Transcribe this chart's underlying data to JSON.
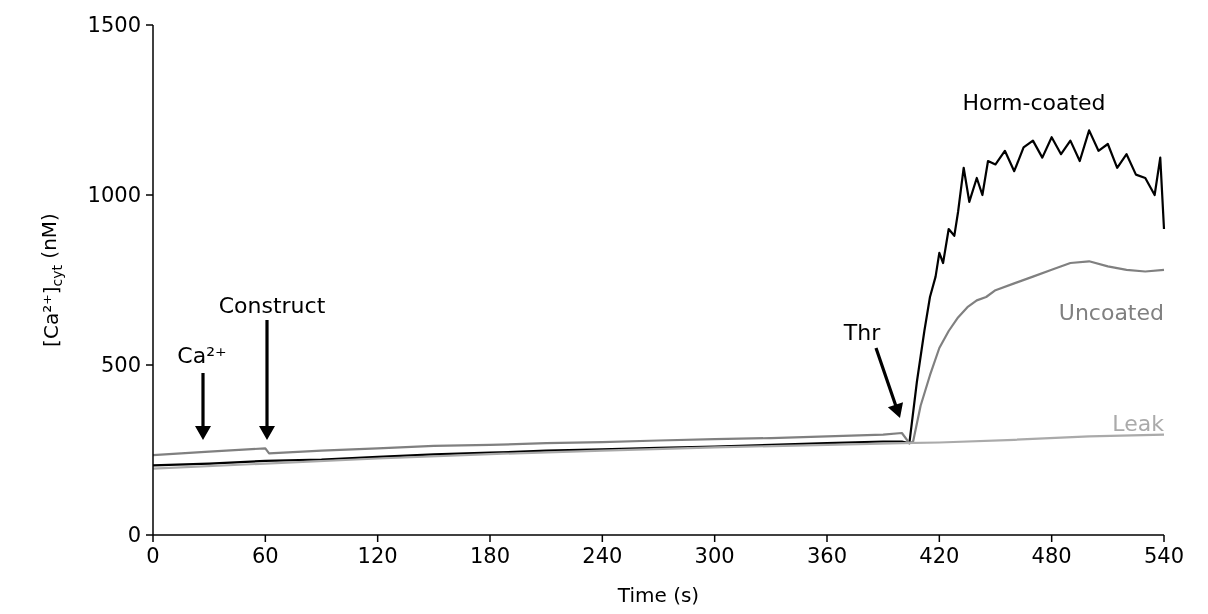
{
  "chart_data": {
    "type": "line",
    "xlabel": "Time (s)",
    "ylabel": "[Ca²⁺]$_{cyt}$ (nM)",
    "xlim": [
      0,
      540
    ],
    "xticks": [
      0,
      60,
      120,
      180,
      240,
      300,
      360,
      420,
      480,
      540
    ],
    "ylim": [
      0,
      1500
    ],
    "yticks": [
      0,
      500,
      1000,
      1500
    ],
    "grid": false,
    "legend": false,
    "marker": "none",
    "line_style": "solid",
    "annotations": [
      "Ca²⁺",
      "Construct",
      "Thr"
    ],
    "series": [
      {
        "name": "Horm-coated",
        "color": "#000000",
        "x": [
          0,
          30,
          60,
          90,
          120,
          150,
          180,
          210,
          240,
          270,
          300,
          330,
          360,
          390,
          400,
          404,
          408,
          412,
          415,
          418,
          420,
          422,
          425,
          428,
          430,
          433,
          436,
          440,
          443,
          446,
          450,
          455,
          460,
          465,
          470,
          475,
          480,
          485,
          490,
          495,
          500,
          505,
          510,
          515,
          520,
          525,
          530,
          535,
          538,
          540
        ],
        "values": [
          205,
          210,
          218,
          222,
          230,
          237,
          242,
          248,
          252,
          256,
          260,
          265,
          270,
          275,
          275,
          270,
          450,
          600,
          700,
          760,
          830,
          800,
          900,
          880,
          950,
          1080,
          980,
          1050,
          1000,
          1100,
          1090,
          1130,
          1070,
          1140,
          1160,
          1110,
          1170,
          1120,
          1160,
          1100,
          1190,
          1130,
          1150,
          1080,
          1120,
          1060,
          1050,
          1000,
          1110,
          900
        ]
      },
      {
        "name": "Uncoated",
        "color": "#808080",
        "x": [
          0,
          30,
          60,
          62,
          90,
          120,
          150,
          180,
          210,
          240,
          270,
          300,
          330,
          360,
          390,
          400,
          404,
          406,
          410,
          415,
          420,
          425,
          430,
          435,
          440,
          445,
          450,
          460,
          470,
          480,
          490,
          500,
          510,
          520,
          530,
          540
        ],
        "values": [
          235,
          245,
          255,
          240,
          248,
          255,
          262,
          265,
          270,
          273,
          278,
          282,
          285,
          290,
          295,
          300,
          270,
          275,
          380,
          470,
          550,
          600,
          640,
          670,
          690,
          700,
          720,
          740,
          760,
          780,
          800,
          805,
          790,
          780,
          775,
          780
        ]
      },
      {
        "name": "Leak",
        "color": "#aaaaaa",
        "x": [
          0,
          60,
          120,
          180,
          240,
          300,
          360,
          400,
          420,
          460,
          500,
          540
        ],
        "values": [
          195,
          210,
          225,
          238,
          248,
          258,
          265,
          270,
          272,
          280,
          290,
          295
        ]
      }
    ]
  }
}
